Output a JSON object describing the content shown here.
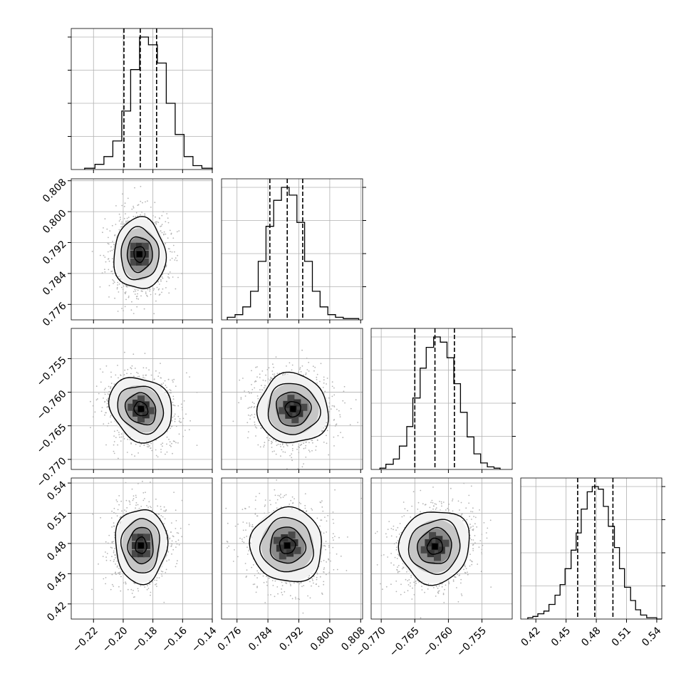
{
  "chart_data": {
    "type": "corner",
    "title": "",
    "parameters": [
      {
        "label": "",
        "range": [
          -0.235,
          -0.14
        ],
        "ticks": [
          "−0.22",
          "−0.20",
          "−0.18",
          "−0.16",
          "−0.14"
        ],
        "tick_values": [
          -0.22,
          -0.2,
          -0.18,
          -0.16,
          -0.14
        ],
        "quantiles": [
          -0.1995,
          -0.1885,
          -0.1775
        ],
        "hist_bins": [
          -0.226,
          -0.219,
          -0.213,
          -0.207,
          -0.201,
          -0.195,
          -0.189,
          -0.183,
          -0.177,
          -0.171,
          -0.165,
          -0.159,
          -0.153,
          -0.147
        ],
        "hist_counts": [
          1,
          4,
          10,
          22,
          45,
          77,
          102,
          96,
          82,
          51,
          27,
          10,
          3,
          1
        ]
      },
      {
        "label": "",
        "range": [
          0.772,
          0.8085
        ],
        "ticks": [
          "0.776",
          "0.784",
          "0.792",
          "0.800",
          "0.808"
        ],
        "tick_values": [
          0.776,
          0.784,
          0.792,
          0.8,
          0.808
        ],
        "quantiles": [
          0.7845,
          0.789,
          0.793
        ],
        "hist_bins": [
          0.7735,
          0.7755,
          0.7775,
          0.7795,
          0.7815,
          0.7835,
          0.7855,
          0.7875,
          0.7895,
          0.7915,
          0.7935,
          0.7955,
          0.7975,
          0.7995,
          0.8015,
          0.8035,
          0.8055
        ],
        "hist_counts": [
          2,
          4,
          10,
          22,
          45,
          72,
          92,
          102,
          96,
          75,
          45,
          22,
          10,
          4,
          2,
          1,
          1
        ]
      },
      {
        "label": "",
        "range": [
          -0.7715,
          -0.7505
        ],
        "ticks": [
          "−0.770",
          "−0.765",
          "−0.760",
          "−0.755"
        ],
        "tick_values": [
          -0.77,
          -0.765,
          -0.76,
          -0.755
        ],
        "quantiles": [
          -0.765,
          -0.762,
          -0.7591
        ],
        "hist_bins": [
          -0.7702,
          -0.7693,
          -0.7682,
          -0.7673,
          -0.7662,
          -0.7653,
          -0.7642,
          -0.7633,
          -0.7622,
          -0.7612,
          -0.7602,
          -0.7592,
          -0.7582,
          -0.7572,
          -0.7562,
          -0.7552,
          -0.7542,
          -0.7532
        ],
        "hist_counts": [
          1,
          4,
          8,
          18,
          33,
          55,
          78,
          94,
          102,
          98,
          86,
          66,
          44,
          25,
          12,
          5,
          2,
          1
        ]
      },
      {
        "label": "",
        "range": [
          0.405,
          0.545
        ],
        "ticks": [
          "0.42",
          "0.45",
          "0.48",
          "0.51",
          "0.54"
        ],
        "tick_values": [
          0.42,
          0.45,
          0.48,
          0.51,
          0.54
        ],
        "quantiles": [
          0.4615,
          0.4785,
          0.4965
        ],
        "hist_bins": [
          0.412,
          0.417,
          0.422,
          0.428,
          0.433,
          0.439,
          0.444,
          0.449,
          0.455,
          0.46,
          0.465,
          0.471,
          0.476,
          0.482,
          0.487,
          0.492,
          0.498,
          0.503,
          0.508,
          0.514,
          0.519,
          0.524,
          0.53,
          0.535,
          0.54
        ],
        "hist_counts": [
          1,
          2,
          4,
          6,
          11,
          18,
          26,
          38,
          52,
          65,
          83,
          96,
          100,
          98,
          85,
          70,
          54,
          38,
          24,
          14,
          7,
          3,
          1,
          1,
          0
        ]
      }
    ],
    "pairs": [
      {
        "x": 0,
        "y": 1,
        "peak": [
          -0.189,
          0.789
        ],
        "sd": [
          0.0085,
          0.0045
        ],
        "corr": -0.05,
        "tilt_deg": 0
      },
      {
        "x": 0,
        "y": 2,
        "peak": [
          -0.188,
          -0.7625
        ],
        "sd": [
          0.0095,
          0.0025
        ],
        "corr": 0.55,
        "tilt_deg": -40
      },
      {
        "x": 1,
        "y": 2,
        "peak": [
          0.7905,
          -0.7625
        ],
        "sd": [
          0.0045,
          0.0025
        ],
        "corr": -0.55,
        "tilt_deg": 35
      },
      {
        "x": 0,
        "y": 3,
        "peak": [
          -0.188,
          0.478
        ],
        "sd": [
          0.0085,
          0.018
        ],
        "corr": 0.0,
        "tilt_deg": 0
      },
      {
        "x": 1,
        "y": 3,
        "peak": [
          0.789,
          0.478
        ],
        "sd": [
          0.0045,
          0.018
        ],
        "corr": 0.3,
        "tilt_deg": -20
      },
      {
        "x": 2,
        "y": 3,
        "peak": [
          -0.762,
          0.477
        ],
        "sd": [
          0.0025,
          0.018
        ],
        "corr": -0.6,
        "tilt_deg": 30
      }
    ],
    "grid": true,
    "contour_levels": [
      0.5,
      1.0,
      1.5,
      2.0
    ],
    "colors": {
      "line": "#000000",
      "grid": "#b0b0b0",
      "scatter": "#b5b5b5"
    }
  }
}
